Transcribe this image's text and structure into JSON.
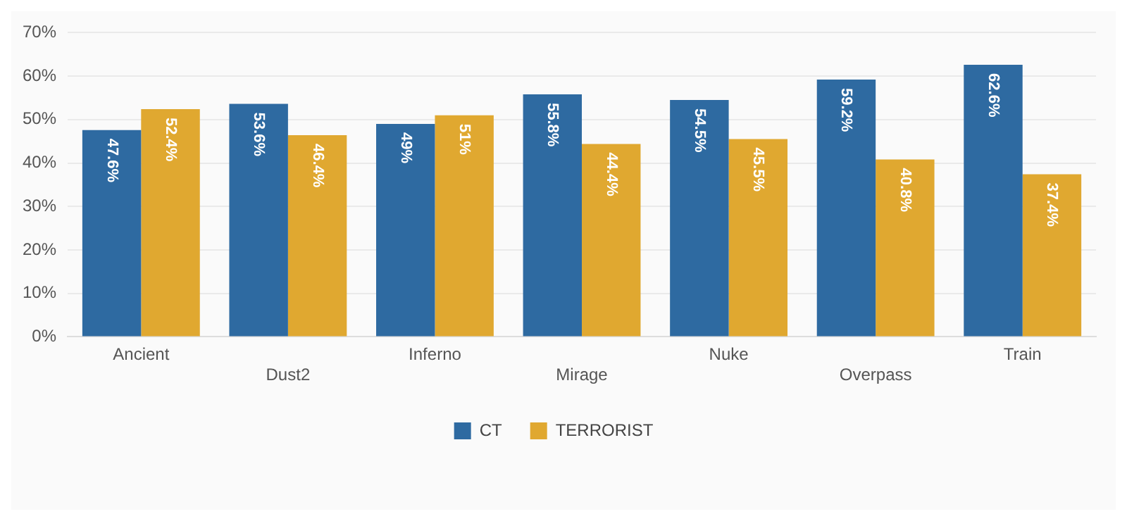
{
  "chart_data": {
    "type": "bar",
    "categories": [
      "Ancient",
      "Dust2",
      "Inferno",
      "Mirage",
      "Nuke",
      "Overpass",
      "Train"
    ],
    "series": [
      {
        "name": "CT",
        "color": "#2e6aa1",
        "values": [
          47.6,
          53.6,
          49,
          55.8,
          54.5,
          59.2,
          62.6
        ],
        "value_labels": [
          "47.6%",
          "53.6%",
          "49%",
          "55.8%",
          "54.5%",
          "59.2%",
          "62.6%"
        ]
      },
      {
        "name": "TERRORIST",
        "color": "#e0a830",
        "values": [
          52.4,
          46.4,
          51,
          44.4,
          45.5,
          40.8,
          37.4
        ],
        "value_labels": [
          "52.4%",
          "46.4%",
          "51%",
          "44.4%",
          "45.5%",
          "40.8%",
          "37.4%"
        ]
      }
    ],
    "ylim": [
      0,
      70
    ],
    "yticks": [
      {
        "value": 0,
        "label": "0%"
      },
      {
        "value": 10,
        "label": "10%"
      },
      {
        "value": 20,
        "label": "20%"
      },
      {
        "value": 30,
        "label": "30%"
      },
      {
        "value": 40,
        "label": "40%"
      },
      {
        "value": 50,
        "label": "50%"
      },
      {
        "value": 60,
        "label": "60%"
      },
      {
        "value": 70,
        "label": "70%"
      }
    ],
    "grid": "y",
    "legend": "bottom"
  }
}
